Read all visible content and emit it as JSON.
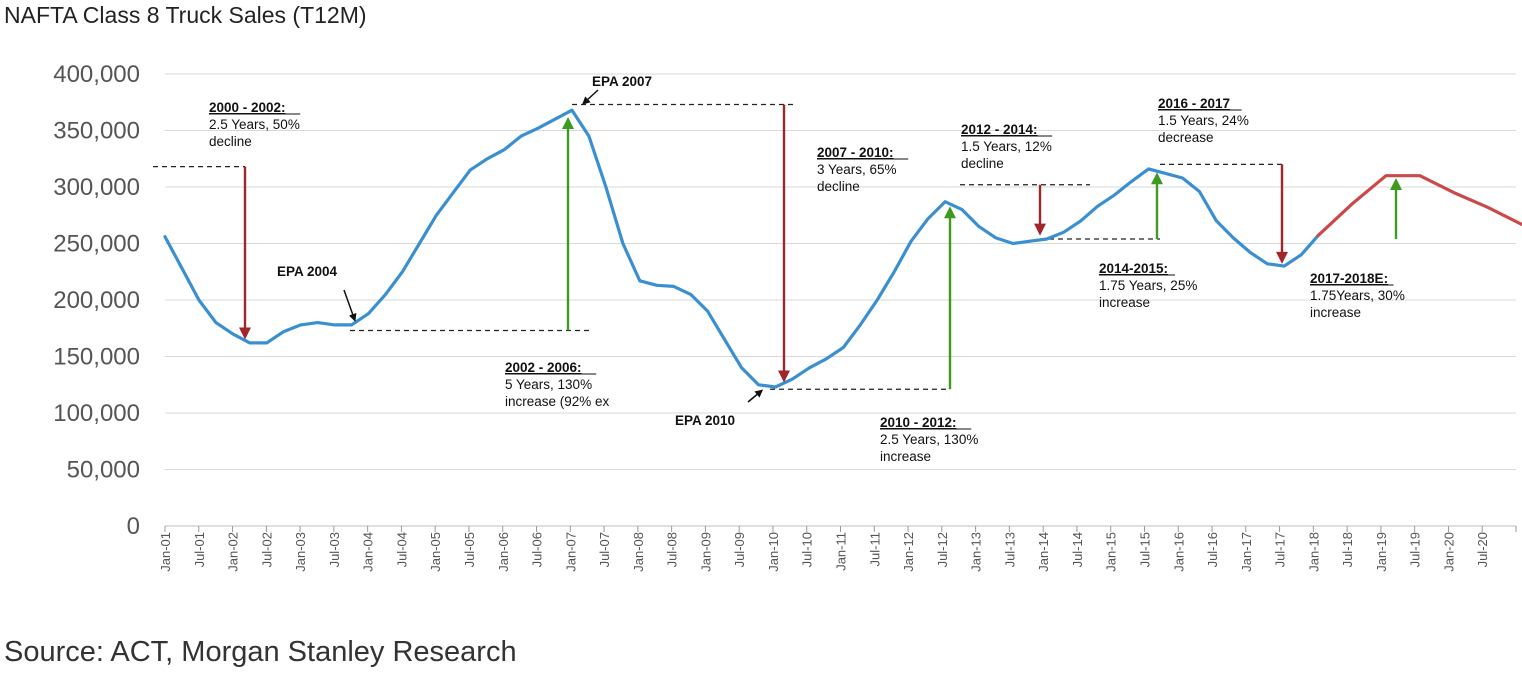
{
  "title": "NAFTA Class 8 Truck Sales (T12M)",
  "source": "Source: ACT, Morgan Stanley Research",
  "colors": {
    "actual": "#3a8fd0",
    "forecast": "#c94a48",
    "decline_arrow": "#a0262b",
    "increase_arrow": "#3f9a22",
    "grid": "#d9d9d9"
  },
  "chart_data": {
    "type": "line",
    "title": "NAFTA Class 8 Truck Sales (T12M)",
    "xlabel": "",
    "ylabel": "",
    "ylim": [
      0,
      400000
    ],
    "yticks": [
      0,
      50000,
      100000,
      150000,
      200000,
      250000,
      300000,
      350000,
      400000
    ],
    "ytick_labels": [
      "0",
      "50,000",
      "100,000",
      "150,000",
      "200,000",
      "250,000",
      "300,000",
      "350,000",
      "400,000"
    ],
    "xtick_labels": [
      "Jan-01",
      "Jul-01",
      "Jan-02",
      "Jul-02",
      "Jan-03",
      "Jul-03",
      "Jan-04",
      "Jul-04",
      "Jan-05",
      "Jul-05",
      "Jan-06",
      "Jul-06",
      "Jan-07",
      "Jul-07",
      "Jan-08",
      "Jul-08",
      "Jan-09",
      "Jul-09",
      "Jan-10",
      "Jul-10",
      "Jan-11",
      "Jul-11",
      "Jan-12",
      "Jul-12",
      "Jan-13",
      "Jul-13",
      "Jan-14",
      "Jul-14",
      "Jan-15",
      "Jul-15",
      "Jan-16",
      "Jul-16",
      "Jan-17",
      "Jul-17",
      "Jan-18",
      "Jul-18",
      "Jan-19",
      "Jul-19",
      "Jan-20",
      "Jul-20"
    ],
    "grid": true,
    "series": [
      {
        "name": "",
        "style": "actual",
        "x": [
          "2001-01",
          "2001-04",
          "2001-07",
          "2001-10",
          "2002-01",
          "2002-04",
          "2002-07",
          "2002-10",
          "2003-01",
          "2003-04",
          "2003-07",
          "2003-10",
          "2004-01",
          "2004-04",
          "2004-07",
          "2004-10",
          "2005-01",
          "2005-04",
          "2005-07",
          "2005-10",
          "2006-01",
          "2006-04",
          "2006-07",
          "2006-10",
          "2007-01",
          "2007-04",
          "2007-07",
          "2007-10",
          "2008-01",
          "2008-04",
          "2008-07",
          "2008-10",
          "2009-01",
          "2009-04",
          "2009-07",
          "2009-10",
          "2010-01",
          "2010-04",
          "2010-07",
          "2010-10",
          "2011-01",
          "2011-04",
          "2011-07",
          "2011-10",
          "2012-01",
          "2012-04",
          "2012-07",
          "2012-10",
          "2013-01",
          "2013-04",
          "2013-07",
          "2013-10",
          "2014-01",
          "2014-04",
          "2014-07",
          "2014-10",
          "2015-01",
          "2015-04",
          "2015-07",
          "2015-10",
          "2016-01",
          "2016-04",
          "2016-07",
          "2016-10",
          "2017-01",
          "2017-04",
          "2017-07",
          "2017-10",
          "2018-01"
        ],
        "values": [
          256000,
          228000,
          200000,
          180000,
          170000,
          162000,
          162000,
          172000,
          178000,
          180000,
          178000,
          178000,
          188000,
          205000,
          225000,
          250000,
          275000,
          295000,
          315000,
          325000,
          333000,
          345000,
          352000,
          360000,
          368000,
          345000,
          300000,
          250000,
          217000,
          213000,
          212000,
          205000,
          190000,
          165000,
          140000,
          125000,
          123000,
          130000,
          140000,
          148000,
          158000,
          178000,
          200000,
          225000,
          252000,
          272000,
          287000,
          280000,
          265000,
          255000,
          250000,
          252000,
          254000,
          260000,
          270000,
          283000,
          293000,
          305000,
          316000,
          312000,
          308000,
          296000,
          270000,
          255000,
          242000,
          232000,
          230000,
          240000,
          257000
        ]
      },
      {
        "name": "",
        "style": "forecast",
        "x": [
          "2018-01",
          "2018-07",
          "2019-01",
          "2019-07",
          "2020-01",
          "2020-07",
          "2021-01"
        ],
        "values": [
          257000,
          285000,
          310000,
          310000,
          295000,
          282000,
          267000
        ]
      }
    ],
    "annotations": [
      {
        "head": "2000 - 2002:",
        "lines": [
          "2.5 Years, 50%",
          "decline"
        ]
      },
      {
        "head": "2002 - 2006:",
        "lines": [
          "5 Years, 130%",
          "increase (92% ex"
        ]
      },
      {
        "head": "2007 - 2010:",
        "lines": [
          "3 Years, 65%",
          "decline"
        ]
      },
      {
        "head": "2010 - 2012:",
        "lines": [
          "2.5 Years, 130%",
          "increase"
        ]
      },
      {
        "head": "2012 - 2014:",
        "lines": [
          "1.5 Years, 12%",
          "decline"
        ]
      },
      {
        "head": "2014-2015:",
        "lines": [
          "1.75 Years, 25%",
          "increase"
        ]
      },
      {
        "head": "2016 - 2017",
        "lines": [
          "1.5 Years, 24%",
          "decrease"
        ]
      },
      {
        "head": "2017-2018E:",
        "lines": [
          "1.75Years, 30%",
          "increase"
        ]
      }
    ],
    "event_labels": [
      "EPA 2004",
      "EPA 2007",
      "EPA 2010"
    ],
    "moves": [
      {
        "type": "decline",
        "from": 318000,
        "to": 165000
      },
      {
        "type": "increase",
        "from": 173000,
        "to": 362000
      },
      {
        "type": "decline",
        "from": 373000,
        "to": 127000
      },
      {
        "type": "increase",
        "from": 121000,
        "to": 283000
      },
      {
        "type": "decline",
        "from": 302000,
        "to": 257000
      },
      {
        "type": "increase",
        "from": 254000,
        "to": 313000
      },
      {
        "type": "decline",
        "from": 320000,
        "to": 232000
      },
      {
        "type": "increase",
        "from": 254000,
        "to": 308000
      }
    ]
  }
}
